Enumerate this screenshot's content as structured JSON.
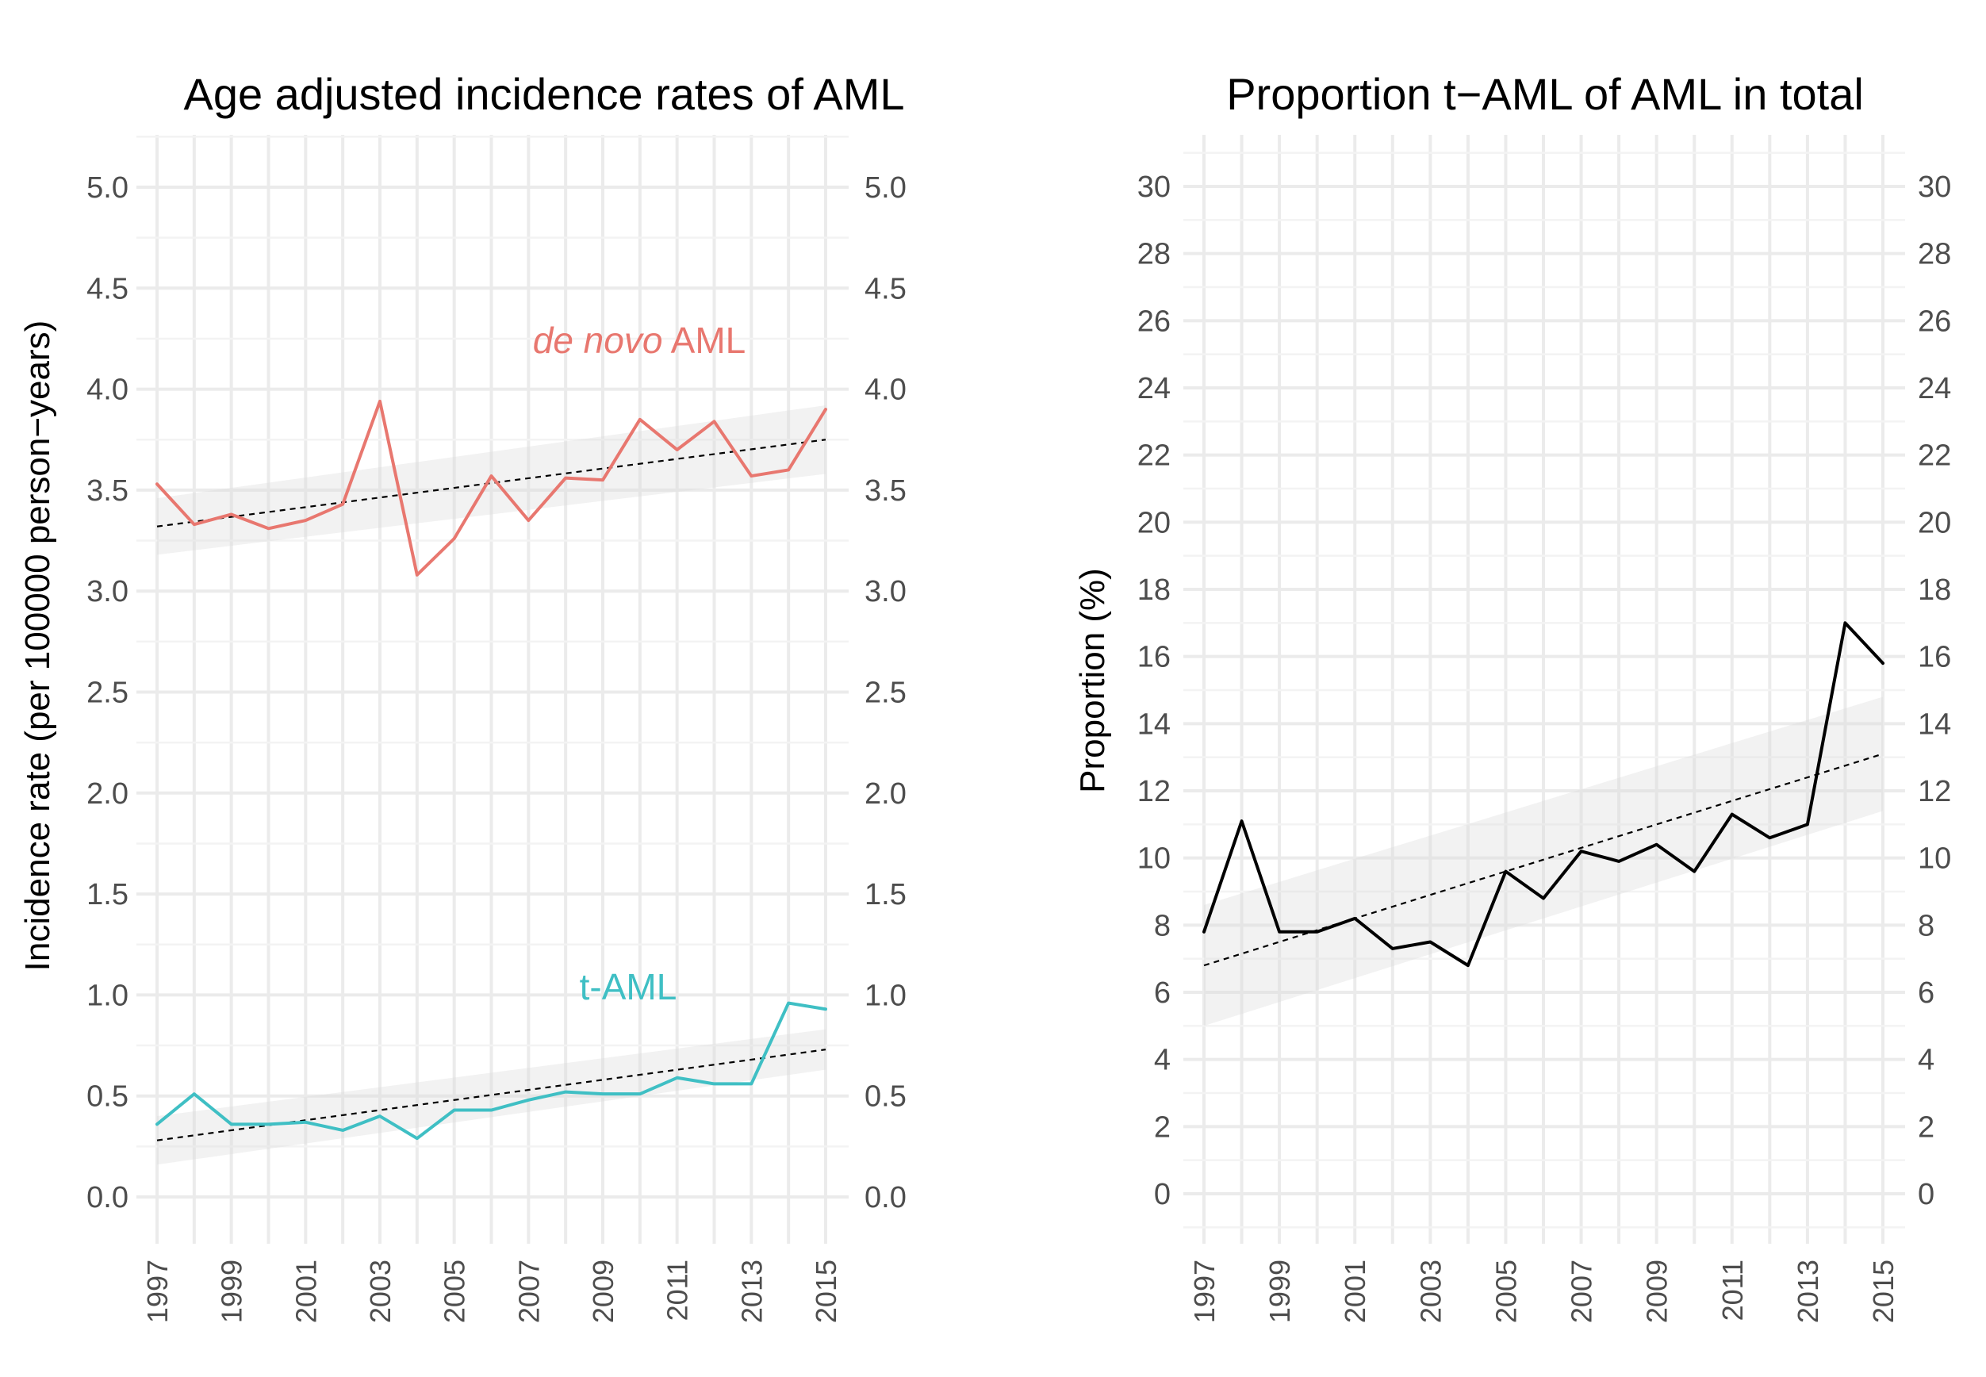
{
  "chart_data": [
    {
      "type": "line",
      "title": "Age adjusted incidence rates of AML",
      "xlabel": "",
      "ylabel": "Incidence rate (per 100000 person−years)",
      "x": [
        1997,
        1998,
        1999,
        2000,
        2001,
        2002,
        2003,
        2004,
        2005,
        2006,
        2007,
        2008,
        2009,
        2010,
        2011,
        2012,
        2013,
        2014,
        2015
      ],
      "x_tick_labels": [
        "1997",
        "1999",
        "2001",
        "2003",
        "2005",
        "2007",
        "2009",
        "2011",
        "2013",
        "2015"
      ],
      "y_tick_labels": [
        "0.0",
        "0.5",
        "1.0",
        "1.5",
        "2.0",
        "2.5",
        "3.0",
        "3.5",
        "4.0",
        "4.5",
        "5.0"
      ],
      "ylim": [
        0,
        5
      ],
      "secondary_y_axis": true,
      "grid": true,
      "series": [
        {
          "label_italic": "de novo",
          "label_plain": " AML",
          "color": "#e8776f",
          "values": [
            3.53,
            3.33,
            3.38,
            3.31,
            3.35,
            3.43,
            3.94,
            3.08,
            3.26,
            3.57,
            3.35,
            3.56,
            3.55,
            3.85,
            3.7,
            3.84,
            3.57,
            3.6,
            3.9
          ],
          "trend": {
            "start": 3.32,
            "end": 3.75
          },
          "ci_band": {
            "start_low": 3.18,
            "start_high": 3.46,
            "end_low": 3.58,
            "end_high": 3.92
          }
        },
        {
          "label_italic": "",
          "label_plain": "t-AML",
          "color": "#3fbfc4",
          "values": [
            0.36,
            0.51,
            0.36,
            0.36,
            0.37,
            0.33,
            0.4,
            0.29,
            0.43,
            0.43,
            0.48,
            0.52,
            0.51,
            0.51,
            0.59,
            0.56,
            0.56,
            0.96,
            0.93
          ],
          "trend": {
            "start": 0.28,
            "end": 0.73
          },
          "ci_band": {
            "start_low": 0.16,
            "start_high": 0.4,
            "end_low": 0.63,
            "end_high": 0.83
          }
        }
      ]
    },
    {
      "type": "line",
      "title": "Proportion t−AML of AML in total",
      "xlabel": "",
      "ylabel": "Proportion (%)",
      "x": [
        1997,
        1998,
        1999,
        2000,
        2001,
        2002,
        2003,
        2004,
        2005,
        2006,
        2007,
        2008,
        2009,
        2010,
        2011,
        2012,
        2013,
        2014,
        2015
      ],
      "x_tick_labels": [
        "1997",
        "1999",
        "2001",
        "2003",
        "2005",
        "2007",
        "2009",
        "2011",
        "2013",
        "2015"
      ],
      "y_tick_labels": [
        "0",
        "2",
        "4",
        "6",
        "8",
        "10",
        "12",
        "14",
        "16",
        "18",
        "20",
        "22",
        "24",
        "26",
        "28",
        "30"
      ],
      "ylim": [
        0,
        30
      ],
      "secondary_y_axis": true,
      "grid": true,
      "series": [
        {
          "color": "#000000",
          "values": [
            7.8,
            11.1,
            7.8,
            7.8,
            8.2,
            7.3,
            7.5,
            6.8,
            9.6,
            8.8,
            10.2,
            9.9,
            10.4,
            9.6,
            11.3,
            10.6,
            11.0,
            17.0,
            15.8
          ],
          "trend": {
            "start": 6.8,
            "end": 13.1
          },
          "ci_band": {
            "start_low": 5.0,
            "start_high": 8.6,
            "end_low": 11.4,
            "end_high": 14.8
          }
        }
      ]
    }
  ]
}
